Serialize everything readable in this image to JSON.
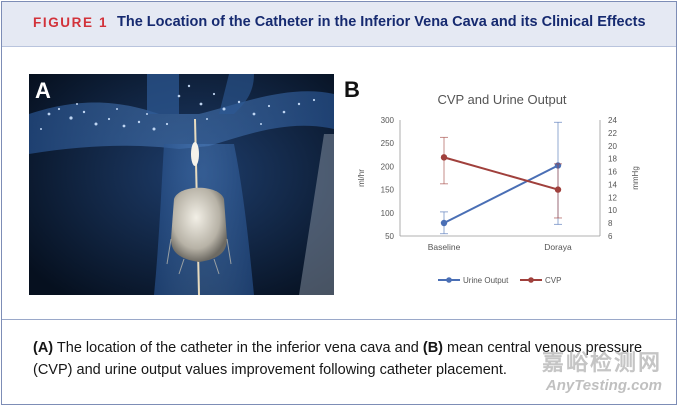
{
  "header": {
    "figure_label": "FIGURE 1",
    "title": "The Location of the Catheter in the Inferior Vena Cava and its Clinical Effects"
  },
  "panel_a": {
    "letter": "A"
  },
  "panel_b": {
    "letter": "B"
  },
  "chart_data": {
    "type": "line",
    "title": "CVP and Urine Output",
    "categories": [
      "Baseline",
      "Doraya"
    ],
    "left_axis": {
      "label": "ml/hr",
      "ylim": [
        50,
        300
      ],
      "ticks": [
        50,
        100,
        150,
        200,
        250,
        300
      ]
    },
    "right_axis": {
      "label": "mmHg",
      "ylim": [
        6,
        24
      ],
      "ticks": [
        6,
        8,
        10,
        12,
        14,
        16,
        18,
        20,
        22,
        24
      ]
    },
    "grid": false,
    "legend_position": "bottom",
    "series": [
      {
        "name": "Urine Output",
        "axis": "left",
        "color": "#4a6fb5",
        "values": [
          78,
          202
        ],
        "err_low": [
          55,
          75
        ],
        "err_high": [
          102,
          295
        ]
      },
      {
        "name": "CVP",
        "axis": "right",
        "color": "#a0403c",
        "values": [
          18.2,
          13.2
        ],
        "err_low": [
          14.1,
          8.8
        ],
        "err_high": [
          21.3,
          17.2
        ]
      }
    ]
  },
  "caption": {
    "label_a": "(A)",
    "text_a": " The location of the catheter in the inferior vena cava and ",
    "label_b": "(B)",
    "text_b": " mean central venous pressure (CVP) and urine output values improvement following catheter placement."
  },
  "watermark": {
    "cn": "嘉峪检测网",
    "en": "AnyTesting.com"
  }
}
